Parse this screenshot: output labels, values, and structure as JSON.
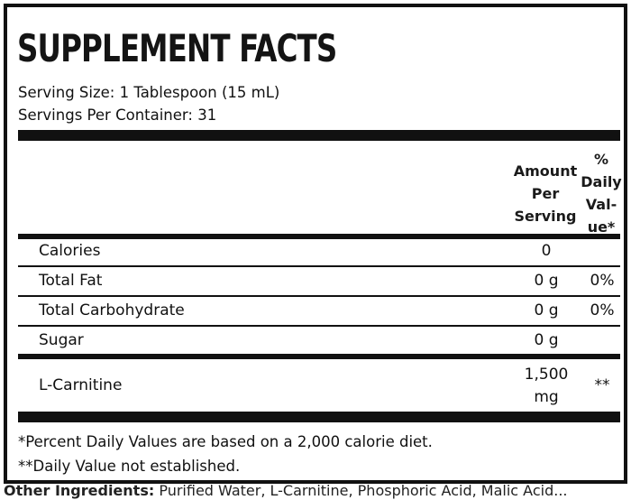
{
  "title": "SUPPLEMENT FACTS",
  "serving_size": "Serving Size: 1 Tablespoon (15 mL)",
  "servings_per_container": "Servings Per Container: 31",
  "header": {
    "amount_per_serving": "Amount Per Serving",
    "daily_value": "% Daily Val-ue*"
  },
  "rows": [
    {
      "label": "Calories",
      "amount": "0",
      "dv": ""
    },
    {
      "label": "Total Fat",
      "amount": "0 g",
      "dv": "0%"
    },
    {
      "label": "Total Carbohydrate",
      "amount": "0 g",
      "dv": "0%"
    },
    {
      "label": "Sugar",
      "amount": "0 g",
      "dv": ""
    },
    {
      "label": "L-Carnitine",
      "amount": "1,500 mg",
      "dv": "**"
    }
  ],
  "footnotes": [
    "*Percent Daily Values are based on a 2,000 calorie diet.",
    "**Daily Value not established."
  ],
  "other_ingredients": {
    "label": "Other Ingredients:",
    "text": "Purified Water, L-Carnitine, Phosphoric Acid, Malic Acid..."
  }
}
